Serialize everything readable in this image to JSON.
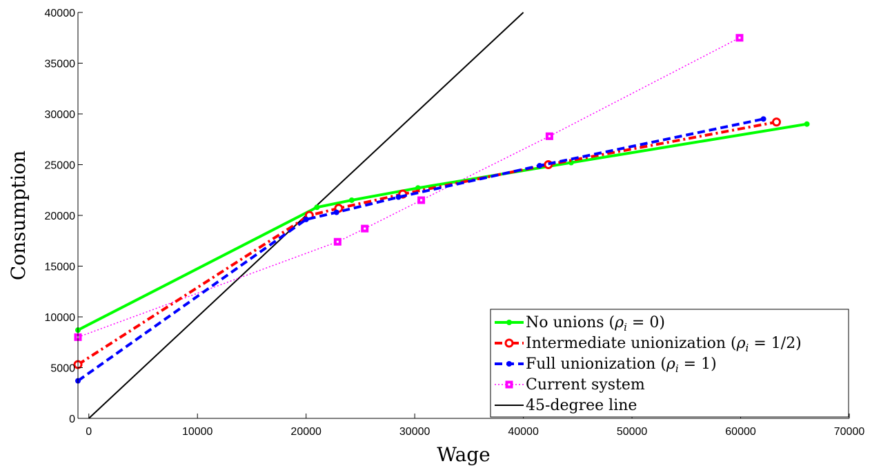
{
  "chart_data": {
    "type": "line",
    "xlabel": "Wage",
    "ylabel": "Consumption",
    "xlim": [
      -1000,
      70000
    ],
    "ylim": [
      0,
      40000
    ],
    "xticks": [
      0,
      10000,
      20000,
      30000,
      40000,
      50000,
      60000,
      70000
    ],
    "yticks": [
      0,
      5000,
      10000,
      15000,
      20000,
      25000,
      30000,
      35000,
      40000
    ],
    "legend_position": "bottom-right",
    "grid": false,
    "series": [
      {
        "name": "No unions (ρᵢ = 0)",
        "legend_prefix": "No unions (",
        "legend_math": "ρ",
        "legend_sub": "i",
        "legend_suffix": " = 0)",
        "color": "#00ff00",
        "style": "solid",
        "marker": "dot",
        "points": [
          [
            -1000,
            8700
          ],
          [
            21000,
            20800
          ],
          [
            24200,
            21500
          ],
          [
            30300,
            22700
          ],
          [
            44400,
            25200
          ],
          [
            66100,
            29000
          ]
        ]
      },
      {
        "name": "Intermediate unionization (ρᵢ = 1/2)",
        "legend_prefix": "Intermediate unionization (",
        "legend_math": "ρ",
        "legend_sub": "i",
        "legend_suffix": " = 1/2)",
        "color": "#ff0000",
        "style": "dashdot",
        "marker": "circle",
        "points": [
          [
            -1000,
            5300
          ],
          [
            20300,
            20000
          ],
          [
            23000,
            20700
          ],
          [
            28900,
            22100
          ],
          [
            42300,
            25000
          ],
          [
            63300,
            29200
          ]
        ]
      },
      {
        "name": "Full unionization (ρᵢ = 1)",
        "legend_prefix": "Full unionization (",
        "legend_math": "ρ",
        "legend_sub": "i",
        "legend_suffix": " = 1)",
        "color": "#0000ff",
        "style": "dashed",
        "marker": "dot",
        "points": [
          [
            -1000,
            3700
          ],
          [
            20000,
            19600
          ],
          [
            22800,
            20300
          ],
          [
            28500,
            21800
          ],
          [
            41500,
            24900
          ],
          [
            62100,
            29500
          ]
        ]
      },
      {
        "name": "Current system",
        "legend_prefix": "Current system",
        "legend_math": "",
        "legend_sub": "",
        "legend_suffix": "",
        "color": "#ff00ff",
        "style": "dotted",
        "marker": "square",
        "points": [
          [
            -1000,
            8000
          ],
          [
            22900,
            17400
          ],
          [
            25400,
            18700
          ],
          [
            30600,
            21500
          ],
          [
            42400,
            27800
          ],
          [
            59900,
            37500
          ]
        ]
      },
      {
        "name": "45-degree line",
        "legend_prefix": "45-degree line",
        "legend_math": "",
        "legend_sub": "",
        "legend_suffix": "",
        "color": "#000000",
        "style": "solid",
        "marker": "none",
        "points": [
          [
            0,
            0
          ],
          [
            40000,
            40000
          ]
        ]
      }
    ]
  }
}
